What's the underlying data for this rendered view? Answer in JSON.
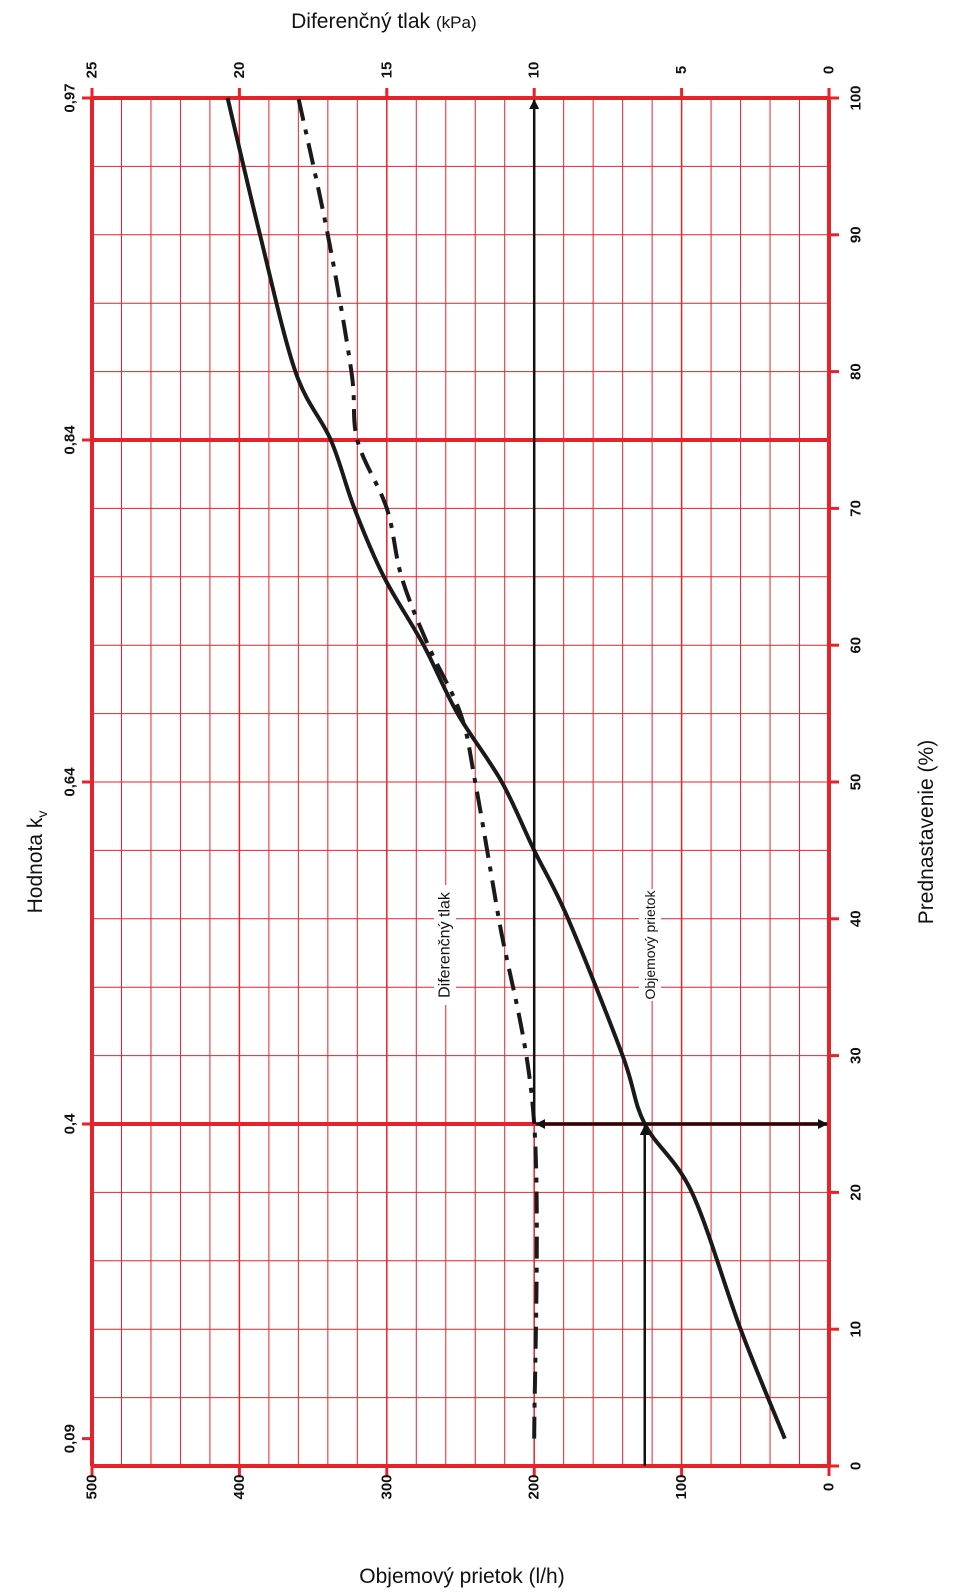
{
  "chart_data": {
    "type": "line",
    "orientation": "rotated-90-clockwise",
    "axes": {
      "preset": {
        "title": "Prednastavenie (%)",
        "range": [
          0,
          100
        ],
        "ticks": [
          "0",
          "10",
          "20",
          "30",
          "40",
          "50",
          "60",
          "70",
          "80",
          "90",
          "100"
        ]
      },
      "flow": {
        "title": "Objemový prietok (l/h)",
        "range": [
          0,
          500
        ],
        "ticks": [
          "0",
          "100",
          "200",
          "300",
          "400",
          "500"
        ]
      },
      "pressure": {
        "title": "Diferenčný tlak",
        "unit": "(kPa)",
        "range": [
          0,
          25
        ],
        "ticks": [
          "0",
          "5",
          "10",
          "15",
          "20",
          "25"
        ]
      },
      "kv": {
        "title": "Hodnota k",
        "subscript": "v",
        "ticks": [
          {
            "label": "0,09",
            "preset": 2
          },
          {
            "label": "0,4",
            "preset": 25
          },
          {
            "label": "0,64",
            "preset": 50
          },
          {
            "label": "0,84",
            "preset": 75
          },
          {
            "label": "0,97",
            "preset": 100
          }
        ]
      }
    },
    "series": [
      {
        "name": "Objemový prietok",
        "axis": "flow",
        "style": "solid",
        "points": [
          [
            2,
            30
          ],
          [
            10,
            60
          ],
          [
            20,
            93
          ],
          [
            25,
            125
          ],
          [
            30,
            140
          ],
          [
            40,
            177
          ],
          [
            45,
            200
          ],
          [
            50,
            222
          ],
          [
            55,
            252
          ],
          [
            60,
            275
          ],
          [
            65,
            302
          ],
          [
            70,
            322
          ],
          [
            75,
            338
          ],
          [
            80,
            362
          ],
          [
            90,
            386
          ],
          [
            100,
            408
          ]
        ]
      },
      {
        "name": "Diferenčný tlak",
        "axis": "pressure",
        "style": "dashdot",
        "points": [
          [
            2,
            10
          ],
          [
            25,
            10
          ],
          [
            40,
            11.2
          ],
          [
            50,
            12
          ],
          [
            55,
            12.5
          ],
          [
            60,
            13.6
          ],
          [
            65,
            14.5
          ],
          [
            70,
            15
          ],
          [
            75,
            16
          ],
          [
            80,
            16.2
          ],
          [
            90,
            17
          ],
          [
            100,
            18
          ]
        ]
      }
    ],
    "grid": true,
    "annotation_lines": {
      "preset_value": 25,
      "flow_value": 125,
      "pressure_value": 10
    },
    "colors": {
      "grid": "#e8222a",
      "curve": "#1a1a1a"
    }
  }
}
